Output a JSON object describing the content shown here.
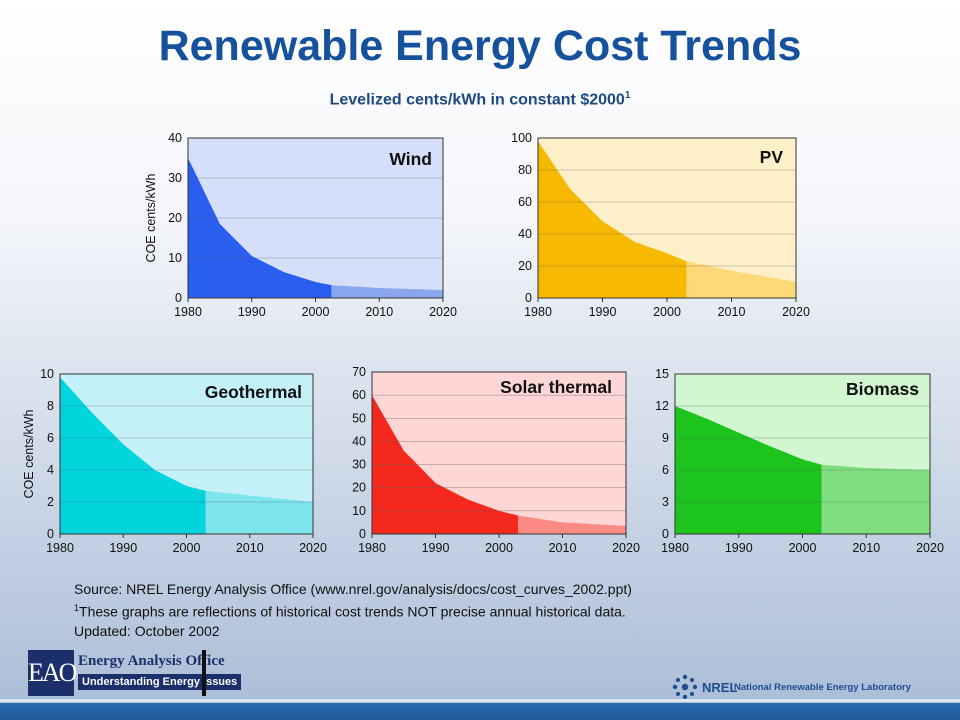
{
  "title": "Renewable Energy Cost Trends",
  "subtitle": "Levelized cents/kWh in constant $2000",
  "subtitle_sup": "1",
  "source": {
    "line1": "Source: NREL Energy Analysis Office (www.nrel.gov/analysis/docs/cost_curves_2002.ppt)",
    "line2_sup": "1",
    "line2": "These graphs are reflections of historical cost trends NOT precise annual historical data.",
    "line3": "Updated: October 2002"
  },
  "logos": {
    "eao_initials": "EAO",
    "eao_name": "Energy Analysis Office",
    "eao_tagline": "Understanding Energy Issues",
    "nrel_short": "NREL",
    "nrel_full": "National Renewable Energy Laboratory"
  },
  "chart_data": [
    {
      "type": "area",
      "title": "Wind",
      "ylabel": "COE cents/kWh",
      "x": [
        1980,
        1985,
        1990,
        1995,
        2000,
        2002.5,
        2010,
        2020
      ],
      "y": [
        35,
        18.5,
        10.5,
        6.5,
        4.0,
        3.2,
        2.5,
        2.0
      ],
      "split_x": 2002.5,
      "xlim": [
        1980,
        2020
      ],
      "ylim": [
        0,
        40
      ],
      "yticks": [
        0,
        10,
        20,
        30,
        40
      ],
      "xticks": [
        1980,
        1990,
        2000,
        2010,
        2020
      ],
      "colors": {
        "bg": "#d6dff9",
        "solid": "#2a5ef0",
        "light": "#8aa6ee"
      }
    },
    {
      "type": "area",
      "title": "PV",
      "ylabel": "",
      "x": [
        1980,
        1985,
        1990,
        1995,
        2000,
        2003,
        2010,
        2020
      ],
      "y": [
        98,
        68,
        48,
        35,
        28,
        23,
        17,
        10
      ],
      "split_x": 2003,
      "xlim": [
        1980,
        2020
      ],
      "ylim": [
        0,
        100
      ],
      "yticks": [
        0,
        20,
        40,
        60,
        80,
        100
      ],
      "xticks": [
        1980,
        1990,
        2000,
        2010,
        2020
      ],
      "colors": {
        "bg": "#fdf0c8",
        "solid": "#f7b800",
        "light": "#fdd978"
      }
    },
    {
      "type": "area",
      "title": "Geothermal",
      "ylabel": "COE cents/kWh",
      "x": [
        1980,
        1985,
        1990,
        1995,
        2000,
        2003,
        2010,
        2020
      ],
      "y": [
        9.8,
        7.6,
        5.6,
        4.0,
        3.0,
        2.7,
        2.4,
        2.0
      ],
      "split_x": 2003,
      "xlim": [
        1980,
        2020
      ],
      "ylim": [
        0,
        10
      ],
      "yticks": [
        0,
        2,
        4,
        6,
        8,
        10
      ],
      "xticks": [
        1980,
        1990,
        2000,
        2010,
        2020
      ],
      "colors": {
        "bg": "#c4f1f8",
        "solid": "#00d4dd",
        "light": "#7de5ee"
      }
    },
    {
      "type": "area",
      "title": "Solar thermal",
      "ylabel": "",
      "x": [
        1980,
        1985,
        1990,
        1995,
        2000,
        2003,
        2010,
        2020
      ],
      "y": [
        60,
        36,
        22,
        15,
        10,
        8,
        5,
        3.5
      ],
      "split_x": 2003,
      "xlim": [
        1980,
        2020
      ],
      "ylim": [
        0,
        70
      ],
      "yticks": [
        0,
        10,
        20,
        30,
        40,
        50,
        60,
        70
      ],
      "xticks": [
        1980,
        1990,
        2000,
        2010,
        2020
      ],
      "colors": {
        "bg": "#fed6d6",
        "solid": "#f5281e",
        "light": "#fc8a84"
      }
    },
    {
      "type": "area",
      "title": "Biomass",
      "ylabel": "",
      "x": [
        1980,
        1985,
        1990,
        1995,
        2000,
        2003,
        2010,
        2020
      ],
      "y": [
        12,
        10.8,
        9.5,
        8.2,
        7.0,
        6.5,
        6.2,
        6.0
      ],
      "split_x": 2003,
      "xlim": [
        1980,
        2020
      ],
      "ylim": [
        0,
        15
      ],
      "yticks": [
        0,
        3,
        6,
        9,
        12,
        15
      ],
      "xticks": [
        1980,
        1990,
        2000,
        2010,
        2020
      ],
      "colors": {
        "bg": "#d2f6d2",
        "solid": "#1ec41e",
        "light": "#7fdf7f"
      }
    }
  ]
}
